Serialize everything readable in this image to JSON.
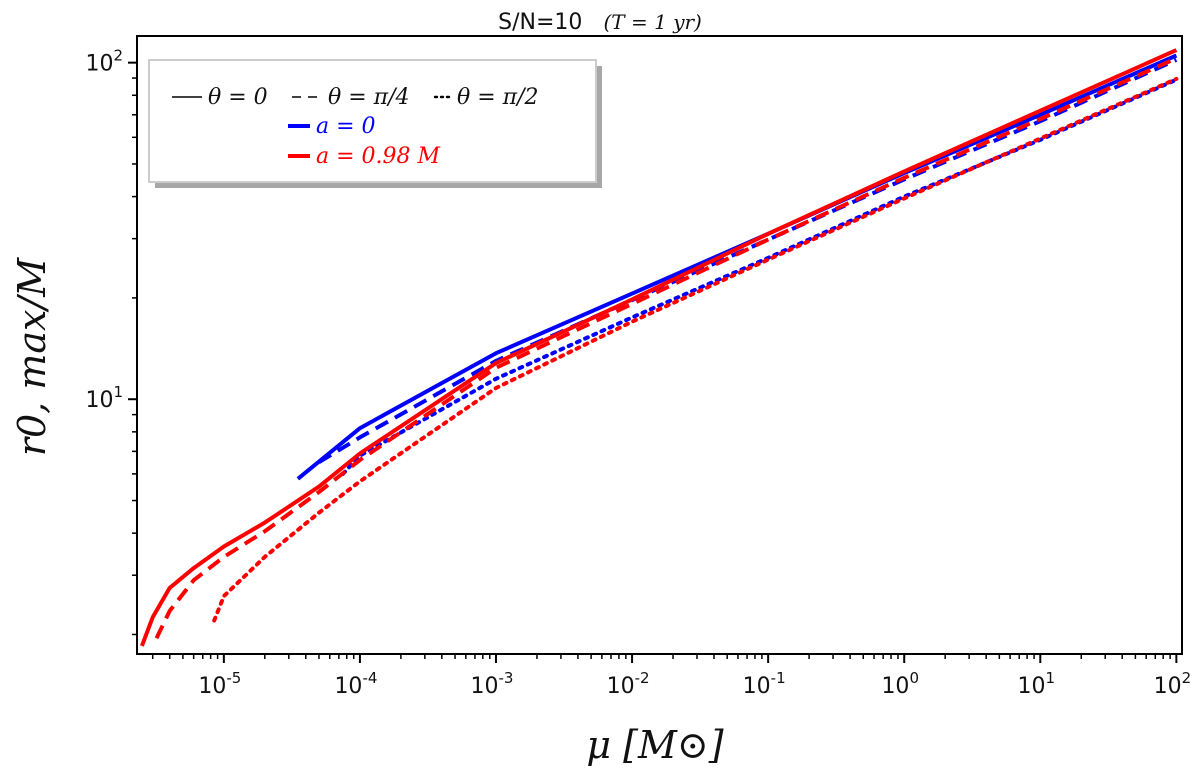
{
  "chart_data": {
    "type": "line",
    "title": "S/N=10",
    "title_suffix": "(T = 1 yr)",
    "xlabel": "μ [M⊙]",
    "ylabel": "r0, max/M",
    "xscale": "log",
    "yscale": "log",
    "xlim": [
      2.3e-06,
      110
    ],
    "ylim": [
      1.75,
      120
    ],
    "x_ticks": [
      {
        "value": 1e-05,
        "base": "10",
        "exp": "-5"
      },
      {
        "value": 0.0001,
        "base": "10",
        "exp": "-4"
      },
      {
        "value": 0.001,
        "base": "10",
        "exp": "-3"
      },
      {
        "value": 0.01,
        "base": "10",
        "exp": "-2"
      },
      {
        "value": 0.1,
        "base": "10",
        "exp": "-1"
      },
      {
        "value": 1,
        "base": "10",
        "exp": "0"
      },
      {
        "value": 10,
        "base": "10",
        "exp": "1"
      },
      {
        "value": 100,
        "base": "10",
        "exp": "2"
      }
    ],
    "y_ticks": [
      {
        "value": 10,
        "base": "10",
        "exp": "1"
      },
      {
        "value": 100,
        "base": "10",
        "exp": "2"
      }
    ],
    "legend": {
      "placement": "top-left",
      "style_entries": [
        {
          "style": "solid",
          "label": "θ = 0"
        },
        {
          "style": "dashed",
          "label": "θ = π/4"
        },
        {
          "style": "dotted",
          "label": "θ = π/2"
        }
      ],
      "color_entries": [
        {
          "color": "#0000ff",
          "label": "a = 0"
        },
        {
          "color": "#ff0000",
          "label": "a = 0.98 M"
        }
      ]
    },
    "series": [
      {
        "name": "a=0, θ=0",
        "color": "#0000ff",
        "style": "solid",
        "x": [
          3.5e-05,
          0.0001,
          0.001,
          0.01,
          0.1,
          1,
          10,
          100
        ],
        "y": [
          5.8,
          8.2,
          13.7,
          20.6,
          31.0,
          47.0,
          70.0,
          105.0
        ]
      },
      {
        "name": "a=0, θ=π/4",
        "color": "#0000ff",
        "style": "dashed",
        "x": [
          5e-05,
          0.0001,
          0.001,
          0.01,
          0.1,
          1,
          10,
          100
        ],
        "y": [
          6.5,
          7.7,
          13.0,
          19.7,
          29.8,
          45.0,
          67.0,
          102.0
        ]
      },
      {
        "name": "a=0, θ=π/2",
        "color": "#0000ff",
        "style": "dotted",
        "x": [
          7.5e-05,
          0.0001,
          0.001,
          0.01,
          0.1,
          1,
          10,
          100
        ],
        "y": [
          6.0,
          6.8,
          11.5,
          17.5,
          26.3,
          40.0,
          59.0,
          89.0
        ]
      },
      {
        "name": "a=0.98M, θ=0",
        "color": "#ff0000",
        "style": "solid",
        "x": [
          2.5e-06,
          3e-06,
          4e-06,
          6e-06,
          1e-05,
          2e-05,
          5e-05,
          0.0001,
          0.001,
          0.01,
          0.1,
          1,
          10,
          100
        ],
        "y": [
          1.85,
          2.25,
          2.75,
          3.15,
          3.65,
          4.3,
          5.5,
          6.9,
          12.8,
          19.8,
          31.0,
          47.5,
          72.0,
          109.0
        ]
      },
      {
        "name": "a=0.98M, θ=π/4",
        "color": "#ff0000",
        "style": "dashed",
        "x": [
          3.2e-06,
          4e-06,
          6e-06,
          1e-05,
          2e-05,
          5e-05,
          0.0001,
          0.001,
          0.01,
          0.1,
          1,
          10,
          100
        ],
        "y": [
          1.95,
          2.35,
          2.9,
          3.4,
          4.05,
          5.3,
          6.6,
          12.4,
          19.2,
          29.8,
          45.5,
          68.0,
          103.0
        ]
      },
      {
        "name": "a=0.98M, θ=π/2",
        "color": "#ff0000",
        "style": "dotted",
        "x": [
          8.5e-06,
          1e-05,
          2e-05,
          5e-05,
          0.0001,
          0.001,
          0.01,
          0.1,
          1,
          10,
          100
        ],
        "y": [
          2.2,
          2.6,
          3.4,
          4.6,
          5.7,
          10.8,
          17.0,
          26.0,
          39.5,
          59.5,
          89.5
        ]
      }
    ]
  }
}
